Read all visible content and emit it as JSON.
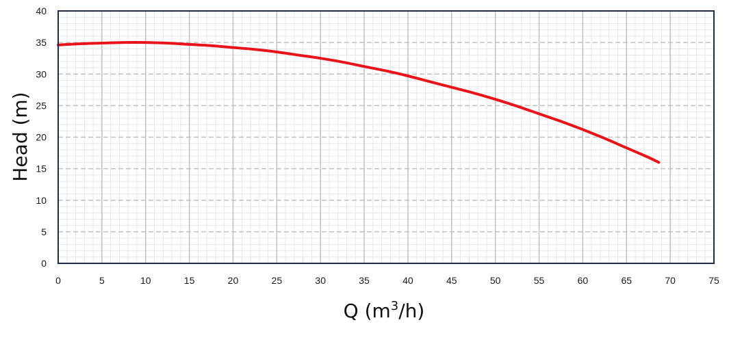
{
  "chart_data": {
    "type": "line",
    "title": "",
    "xlabel": {
      "prefix": "Q (m",
      "sup": "3",
      "suffix": "/h)"
    },
    "ylabel": "Head (m)",
    "xlim": [
      0,
      75
    ],
    "ylim": [
      0,
      40
    ],
    "x_ticks": [
      "0",
      "5",
      "10",
      "15",
      "20",
      "25",
      "30",
      "35",
      "40",
      "45",
      "50",
      "55",
      "60",
      "65",
      "70",
      "75"
    ],
    "y_ticks": [
      "0",
      "5",
      "10",
      "15",
      "20",
      "25",
      "30",
      "35",
      "40"
    ],
    "grid": true,
    "legend": "none",
    "series": [
      {
        "color": "#e8141a",
        "x": [
          0,
          2.5,
          5,
          7.5,
          10,
          12.5,
          15,
          17.5,
          20,
          22.5,
          25,
          27.5,
          30,
          32.5,
          35,
          37.5,
          40,
          42.5,
          45,
          47.5,
          50,
          52.5,
          55,
          57.5,
          60,
          62.5,
          65,
          67.5,
          68.7
        ],
        "y": [
          34.6,
          34.8,
          34.9,
          35.0,
          35.0,
          34.9,
          34.7,
          34.5,
          34.2,
          33.9,
          33.5,
          33.0,
          32.5,
          31.9,
          31.2,
          30.5,
          29.7,
          28.8,
          27.9,
          27.0,
          26.0,
          24.9,
          23.7,
          22.5,
          21.2,
          19.8,
          18.3,
          16.8,
          16.0
        ]
      }
    ],
    "colors": {
      "plot_border": "#1f2a44",
      "major_grid": "#c0c0c0",
      "minor_grid": "#e6e6e6"
    }
  }
}
